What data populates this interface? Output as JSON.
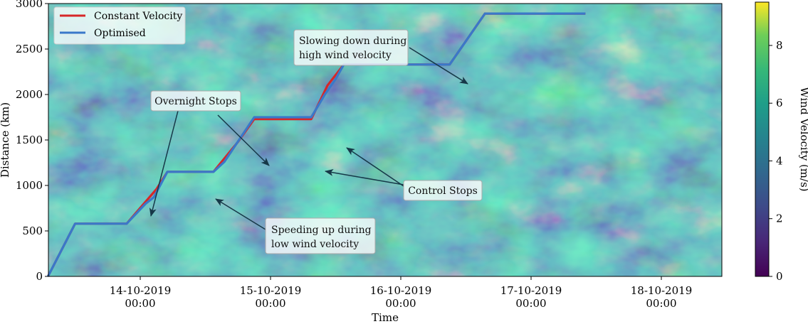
{
  "chart_data": {
    "type": "line",
    "title": "",
    "xlabel": "Time",
    "ylabel": "Distance (km)",
    "ylim": [
      0,
      3000
    ],
    "xlim_days_hint": [
      "13-10-2019 07:00",
      "18-10-2019 10:00"
    ],
    "x_ticks": [
      {
        "date": "14-10-2019",
        "time": "00:00"
      },
      {
        "date": "15-10-2019",
        "time": "00:00"
      },
      {
        "date": "16-10-2019",
        "time": "00:00"
      },
      {
        "date": "17-10-2019",
        "time": "00:00"
      },
      {
        "date": "18-10-2019",
        "time": "00:00"
      }
    ],
    "y_ticks": [
      "0",
      "500",
      "1000",
      "1500",
      "2000",
      "2500",
      "3000"
    ],
    "y_tick_values": [
      0,
      500,
      1000,
      1500,
      2000,
      2500,
      3000
    ],
    "colorbar": {
      "label": "Wind Velocity (m/s)",
      "range": [
        0,
        9.5
      ],
      "ticks": [
        "0",
        "2",
        "4",
        "6",
        "8"
      ],
      "tick_values": [
        0,
        2,
        4,
        6,
        8
      ],
      "colormap": "viridis"
    },
    "legend": {
      "placement": "top-left",
      "entries": [
        "Constant Velocity",
        "Optimised"
      ]
    },
    "series": [
      {
        "name": "Constant Velocity",
        "color": "#d62728",
        "points": [
          [
            "13-10-2019 07:00",
            0
          ],
          [
            "13-10-2019 12:00",
            580
          ],
          [
            "13-10-2019 21:30",
            580
          ],
          [
            "14-10-2019 03:00",
            960
          ],
          [
            "14-10-2019 05:00",
            1150
          ],
          [
            "14-10-2019 13:30",
            1150
          ],
          [
            "14-10-2019 18:00",
            1480
          ],
          [
            "14-10-2019 21:00",
            1730
          ],
          [
            "15-10-2019 07:30",
            1730
          ],
          [
            "15-10-2019 10:30",
            2100
          ],
          [
            "15-10-2019 13:30",
            2330
          ],
          [
            "16-10-2019 09:00",
            2330
          ],
          [
            "16-10-2019 15:30",
            2890
          ],
          [
            "17-10-2019 10:00",
            2890
          ]
        ]
      },
      {
        "name": "Optimised",
        "color": "#3a78c9",
        "points": [
          [
            "13-10-2019 07:00",
            0
          ],
          [
            "13-10-2019 12:00",
            580
          ],
          [
            "13-10-2019 21:30",
            580
          ],
          [
            "14-10-2019 01:00",
            800
          ],
          [
            "14-10-2019 02:30",
            870
          ],
          [
            "14-10-2019 05:00",
            1150
          ],
          [
            "14-10-2019 13:30",
            1150
          ],
          [
            "14-10-2019 15:30",
            1260
          ],
          [
            "14-10-2019 21:00",
            1750
          ],
          [
            "15-10-2019 07:30",
            1750
          ],
          [
            "15-10-2019 10:00",
            2000
          ],
          [
            "15-10-2019 12:00",
            2170
          ],
          [
            "15-10-2019 13:30",
            2330
          ],
          [
            "16-10-2019 09:00",
            2330
          ],
          [
            "16-10-2019 15:30",
            2890
          ],
          [
            "17-10-2019 10:00",
            2890
          ]
        ]
      }
    ],
    "annotations": [
      {
        "text": [
          "Overnight Stops"
        ],
        "box": "Overnight Stops"
      },
      {
        "text": [
          "Slowing down during",
          "high wind velocity"
        ]
      },
      {
        "text": [
          "Control Stops"
        ]
      },
      {
        "text": [
          "Speeding up during",
          "low wind velocity"
        ]
      }
    ]
  }
}
